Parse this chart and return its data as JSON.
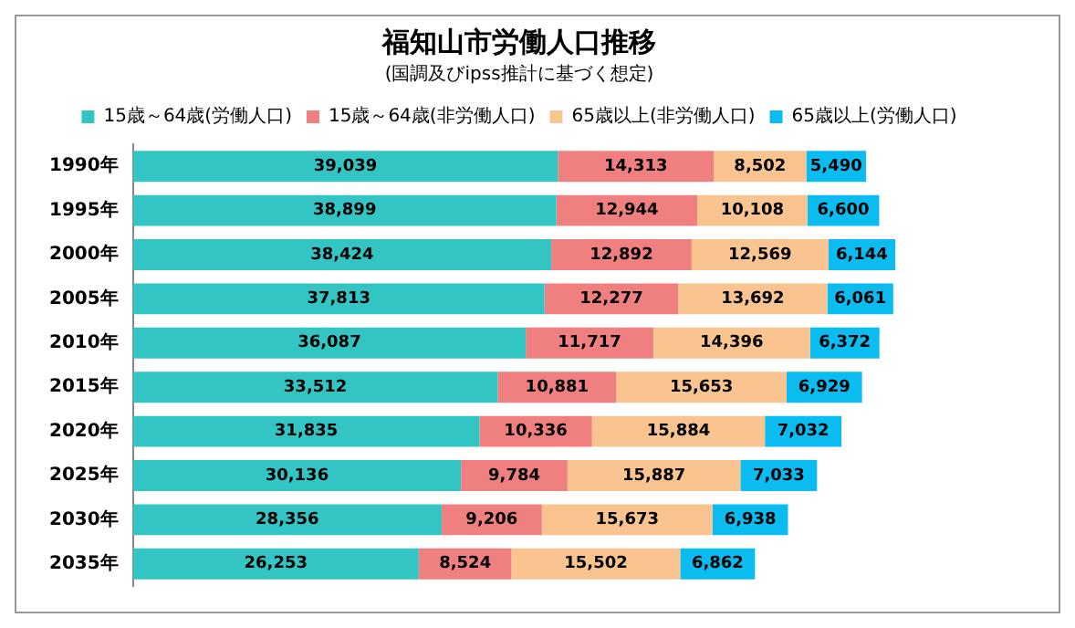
{
  "chart_data": {
    "type": "bar",
    "orientation": "horizontal",
    "stacked": true,
    "title": "福知山市労働人口推移",
    "subtitle": "(国調及びipss推計に基づく想定)",
    "categories": [
      "1990年",
      "1995年",
      "2000年",
      "2005年",
      "2010年",
      "2015年",
      "2020年",
      "2025年",
      "2030年",
      "2035年"
    ],
    "series": [
      {
        "name": "15歳～64歳(労働人口)",
        "color": "#33c4c4",
        "values": [
          39039,
          38899,
          38424,
          37813,
          36087,
          33512,
          31835,
          30136,
          28356,
          26253
        ],
        "value_labels": [
          "39,039",
          "38,899",
          "38,424",
          "37,813",
          "36,087",
          "33,512",
          "31,835",
          "30,136",
          "28,356",
          "26,253"
        ]
      },
      {
        "name": "15歳～64歳(非労働人口)",
        "color": "#f08080",
        "values": [
          14313,
          12944,
          12892,
          12277,
          11717,
          10881,
          10336,
          9784,
          9206,
          8524
        ],
        "value_labels": [
          "14,313",
          "12,944",
          "12,892",
          "12,277",
          "11,717",
          "10,881",
          "10,336",
          "9,784",
          "9,206",
          "8,524"
        ]
      },
      {
        "name": "65歳以上(非労働人口)",
        "color": "#f9c490",
        "values": [
          8502,
          10108,
          12569,
          13692,
          14396,
          15653,
          15884,
          15887,
          15673,
          15502
        ],
        "value_labels": [
          "8,502",
          "10,108",
          "12,569",
          "13,692",
          "14,396",
          "15,653",
          "15,884",
          "15,887",
          "15,673",
          "15,502"
        ]
      },
      {
        "name": "65歳以上(労働人口)",
        "color": "#0bbcf0",
        "values": [
          5490,
          6600,
          6144,
          6061,
          6372,
          6929,
          7032,
          7033,
          6938,
          6862
        ],
        "value_labels": [
          "5,490",
          "6,600",
          "6,144",
          "6,061",
          "6,372",
          "6,929",
          "7,032",
          "7,033",
          "6,938",
          "6,862"
        ]
      }
    ],
    "legend": "top"
  }
}
